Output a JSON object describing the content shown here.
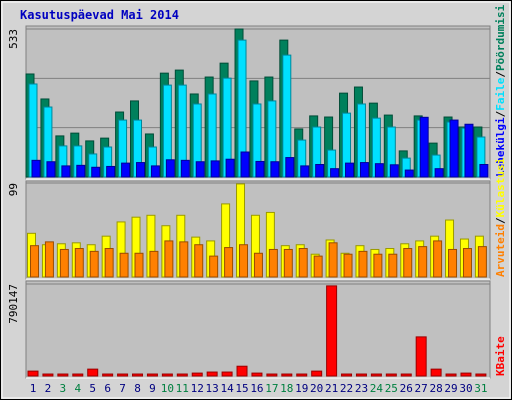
{
  "title": "Kasutuspäevad Mai 2014",
  "legend_separator": "/",
  "chart_data": [
    {
      "type": "bar",
      "series": [
        {
          "name": "Pöördumisi",
          "color": "#00805c",
          "values": [
            371,
            281,
            148,
            158,
            130,
            140,
            234,
            274,
            155,
            374,
            385,
            299,
            360,
            410,
            533,
            346,
            360,
            493,
            173,
            220,
            216,
            302,
            324,
            266,
            223,
            94,
            220,
            122,
            216,
            180,
            180
          ]
        },
        {
          "name": "Faile",
          "color": "#00e0ff",
          "values": [
            335,
            252,
            112,
            112,
            83,
            108,
            205,
            205,
            108,
            331,
            331,
            263,
            299,
            356,
            493,
            263,
            274,
            439,
            133,
            180,
            97,
            230,
            263,
            212,
            180,
            68,
            205,
            79,
            198,
            176,
            144
          ]
        },
        {
          "name": "Lehekülgi",
          "color": "#0000ff",
          "values": [
            60,
            55,
            40,
            42,
            35,
            38,
            50,
            52,
            40,
            62,
            60,
            55,
            58,
            64,
            90,
            56,
            55,
            70,
            40,
            45,
            30,
            50,
            52,
            48,
            44,
            25,
            215,
            30,
            205,
            190,
            45
          ]
        }
      ],
      "ylim": [
        0,
        533
      ],
      "yticks": [
        533
      ]
    },
    {
      "type": "bar",
      "series": [
        {
          "name": "Külastusi",
          "color": "#ffff00",
          "values": [
            46,
            34,
            35,
            36,
            34,
            43,
            58,
            63,
            65,
            54,
            65,
            42,
            38,
            77,
            98,
            65,
            68,
            33,
            34,
            24,
            39,
            25,
            33,
            29,
            30,
            35,
            38,
            43,
            60,
            40,
            43
          ]
        },
        {
          "name": "Arvuteid",
          "color": "#ff8000",
          "values": [
            33,
            37,
            29,
            30,
            27,
            30,
            25,
            25,
            27,
            38,
            37,
            34,
            22,
            31,
            34,
            25,
            29,
            29,
            30,
            22,
            36,
            24,
            27,
            24,
            24,
            30,
            32,
            38,
            29,
            30,
            32
          ]
        }
      ],
      "ylim": [
        0,
        99
      ],
      "yticks": [
        99
      ]
    },
    {
      "type": "bar",
      "series": [
        {
          "name": "KBaite",
          "color": "#ff0000",
          "values": [
            42000,
            17000,
            17000,
            17000,
            59000,
            17000,
            17000,
            17000,
            17000,
            17000,
            17000,
            25000,
            34000,
            34000,
            84000,
            25000,
            17000,
            17000,
            17000,
            42000,
            774000,
            17000,
            17000,
            17000,
            17000,
            17000,
            336000,
            59000,
            17000,
            25000,
            17000
          ]
        }
      ],
      "ylim": [
        0,
        790147
      ],
      "yticks": [
        790147
      ],
      "categories": [
        "1",
        "2",
        "3",
        "4",
        "5",
        "6",
        "7",
        "8",
        "9",
        "10",
        "11",
        "12",
        "13",
        "14",
        "15",
        "16",
        "17",
        "18",
        "19",
        "20",
        "21",
        "22",
        "23",
        "24",
        "25",
        "26",
        "27",
        "28",
        "29",
        "30",
        "31"
      ],
      "category_colors": [
        "#000080",
        "#000080",
        "#008040",
        "#008040",
        "#000080",
        "#000080",
        "#000080",
        "#000080",
        "#000080",
        "#008040",
        "#008040",
        "#000080",
        "#000080",
        "#000080",
        "#000080",
        "#000080",
        "#008040",
        "#008040",
        "#000080",
        "#000080",
        "#000080",
        "#000080",
        "#000080",
        "#008040",
        "#008040",
        "#000080",
        "#000080",
        "#000080",
        "#000080",
        "#000080",
        "#008040"
      ]
    }
  ]
}
